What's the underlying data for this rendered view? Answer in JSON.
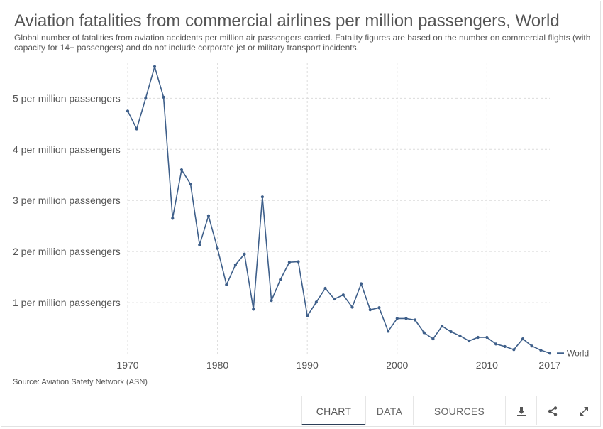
{
  "header": {
    "title": "Aviation fatalities from commercial airlines per million passengers, World",
    "subtitle": "Global number of fatalities from aviation accidents per million air passengers carried. Fatality figures are based on the number on commercial flights (with capacity for 14+ passengers) and do not include corporate jet or military transport incidents."
  },
  "source": "Source: Aviation Safety Network (ASN)",
  "tabs": [
    {
      "label": "CHART",
      "active": true
    },
    {
      "label": "DATA",
      "active": false
    },
    {
      "label": "SOURCES",
      "active": false
    }
  ],
  "icons": [
    "download-icon",
    "share-icon",
    "expand-icon"
  ],
  "colors": {
    "series": "#3e5f8a",
    "active_tab": "#2c3e57"
  },
  "chart_data": {
    "type": "line",
    "title": "Aviation fatalities from commercial airlines per million passengers, World",
    "xlabel": "",
    "ylabel": "",
    "xlim": [
      1970,
      2017
    ],
    "ylim": [
      0,
      5.7
    ],
    "x_ticks": [
      1970,
      1980,
      1990,
      2000,
      2010,
      2017
    ],
    "y_ticks": [
      1,
      2,
      3,
      4,
      5
    ],
    "y_tick_labels": [
      "1 per million passengers",
      "2 per million passengers",
      "3 per million passengers",
      "4 per million passengers",
      "5 per million passengers"
    ],
    "grid": true,
    "legend": "right-end label",
    "series": [
      {
        "name": "World",
        "color": "#3e5f8a",
        "x": [
          1970,
          1971,
          1972,
          1973,
          1974,
          1975,
          1976,
          1977,
          1978,
          1979,
          1980,
          1981,
          1982,
          1983,
          1984,
          1985,
          1986,
          1987,
          1988,
          1989,
          1990,
          1991,
          1992,
          1993,
          1994,
          1995,
          1996,
          1997,
          1998,
          1999,
          2000,
          2001,
          2002,
          2003,
          2004,
          2005,
          2006,
          2007,
          2008,
          2009,
          2010,
          2011,
          2012,
          2013,
          2014,
          2015,
          2016,
          2017
        ],
        "values": [
          4.75,
          4.4,
          5.0,
          5.62,
          5.02,
          2.65,
          3.6,
          3.32,
          2.13,
          2.7,
          2.06,
          1.35,
          1.74,
          1.95,
          0.87,
          3.07,
          1.04,
          1.45,
          1.79,
          1.8,
          0.74,
          1.01,
          1.28,
          1.07,
          1.15,
          0.91,
          1.37,
          0.86,
          0.9,
          0.44,
          0.69,
          0.69,
          0.66,
          0.41,
          0.29,
          0.54,
          0.43,
          0.35,
          0.25,
          0.32,
          0.32,
          0.19,
          0.14,
          0.08,
          0.29,
          0.15,
          0.07,
          0.01
        ]
      }
    ]
  }
}
